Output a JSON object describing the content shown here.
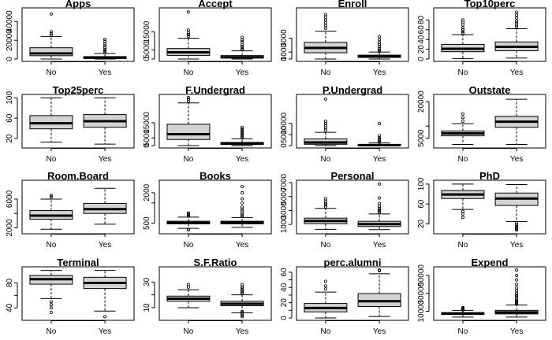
{
  "chart_data": [
    {
      "type": "boxplot",
      "title": "Apps",
      "categories": [
        "No",
        "Yes"
      ],
      "ylim": [
        0,
        52000
      ],
      "yticks": [
        0,
        20000,
        40000
      ],
      "ytick_labels": [
        "0",
        "20000",
        "40000"
      ],
      "boxes": [
        {
          "min": 0,
          "q1": 3500,
          "median": 6000,
          "q3": 12000,
          "max": 24000,
          "outliers": [
            25000,
            27000,
            29000,
            48000
          ]
        },
        {
          "min": 0,
          "q1": 800,
          "median": 1400,
          "q3": 2600,
          "max": 6000,
          "outliers": [
            7000,
            8500,
            10000,
            12000,
            14000,
            16000,
            19000,
            21000
          ]
        }
      ]
    },
    {
      "type": "boxplot",
      "title": "Accept",
      "categories": [
        "No",
        "Yes"
      ],
      "ylim": [
        0,
        27000
      ],
      "yticks": [
        0,
        5000,
        15000
      ],
      "ytick_labels": [
        "0",
        "5000",
        "15000"
      ],
      "boxes": [
        {
          "min": 0,
          "q1": 2000,
          "median": 3700,
          "q3": 5800,
          "max": 11500,
          "outliers": [
            12500,
            13500,
            14500,
            16000,
            26000
          ]
        },
        {
          "min": 0,
          "q1": 550,
          "median": 1000,
          "q3": 1900,
          "max": 4500,
          "outliers": [
            5200,
            6000,
            7000,
            8000,
            9500,
            10500,
            12000
          ]
        }
      ]
    },
    {
      "type": "boxplot",
      "title": "Enroll",
      "categories": [
        "No",
        "Yes"
      ],
      "ylim": [
        0,
        7000
      ],
      "yticks": [
        0,
        1000,
        3000
      ],
      "ytick_labels": [
        "0",
        "1000",
        "3000"
      ],
      "boxes": [
        {
          "min": 0,
          "q1": 900,
          "median": 1600,
          "q3": 2400,
          "max": 4000,
          "outliers": [
            4400,
            4800,
            5200,
            5600,
            6000,
            6400
          ]
        },
        {
          "min": 0,
          "q1": 230,
          "median": 350,
          "q3": 560,
          "max": 1000,
          "outliers": [
            1100,
            1300,
            1500,
            1800,
            2100,
            2400,
            2800,
            3200
          ]
        }
      ]
    },
    {
      "type": "boxplot",
      "title": "Top10perc",
      "categories": [
        "No",
        "Yes"
      ],
      "ylim": [
        0,
        100
      ],
      "yticks": [
        0,
        20,
        40,
        60,
        80
      ],
      "ytick_labels": [
        "0",
        "20",
        "40",
        "60",
        "80"
      ],
      "boxes": [
        {
          "min": 1,
          "q1": 15,
          "median": 21,
          "q3": 30,
          "max": 50,
          "outliers": [
            53,
            56,
            60,
            64,
            70,
            75,
            80
          ]
        },
        {
          "min": 2,
          "q1": 17,
          "median": 25,
          "q3": 35,
          "max": 62,
          "outliers": [
            66,
            70,
            74,
            78,
            84,
            90,
            96
          ]
        }
      ]
    },
    {
      "type": "boxplot",
      "title": "Top25perc",
      "categories": [
        "No",
        "Yes"
      ],
      "ylim": [
        6,
        102
      ],
      "yticks": [
        20,
        60,
        100
      ],
      "ytick_labels": [
        "20",
        "60",
        "100"
      ],
      "boxes": [
        {
          "min": 13,
          "q1": 39,
          "median": 50,
          "q3": 65,
          "max": 100,
          "outliers": []
        },
        {
          "min": 9,
          "q1": 42,
          "median": 54,
          "q3": 67,
          "max": 100,
          "outliers": []
        }
      ]
    },
    {
      "type": "boxplot",
      "title": "F.Undergrad",
      "categories": [
        "No",
        "Yes"
      ],
      "ylim": [
        0,
        32000
      ],
      "yticks": [
        0,
        5000,
        15000
      ],
      "ytick_labels": [
        "0",
        "5000",
        "15000"
      ],
      "boxes": [
        {
          "min": 0,
          "q1": 4000,
          "median": 7500,
          "q3": 14000,
          "max": 28000,
          "outliers": [
            29000,
            30500,
            31500
          ]
        },
        {
          "min": 0,
          "q1": 700,
          "median": 1300,
          "q3": 2100,
          "max": 4500,
          "outliers": [
            5000,
            6000,
            7000,
            8000,
            9000,
            10000,
            11000,
            12000
          ]
        }
      ]
    },
    {
      "type": "boxplot",
      "title": "P.Undergrad",
      "categories": [
        "No",
        "Yes"
      ],
      "ylim": [
        0,
        22000
      ],
      "yticks": [
        0,
        5000,
        10000
      ],
      "ytick_labels": [
        "0",
        "5000",
        "10000"
      ],
      "boxes": [
        {
          "min": 0,
          "q1": 600,
          "median": 1400,
          "q3": 3000,
          "max": 6000,
          "outliers": [
            7000,
            8000,
            9000,
            10000,
            11000,
            21000
          ]
        },
        {
          "min": 0,
          "q1": 50,
          "median": 200,
          "q3": 500,
          "max": 1200,
          "outliers": [
            1500,
            2000,
            2500,
            3000,
            3500,
            4500,
            10000
          ]
        }
      ]
    },
    {
      "type": "boxplot",
      "title": "Outstate",
      "categories": [
        "No",
        "Yes"
      ],
      "ylim": [
        2000,
        22000
      ],
      "yticks": [
        5000,
        10000,
        20000
      ],
      "ytick_labels": [
        "5000",
        "",
        "20000"
      ],
      "boxes": [
        {
          "min": 2500,
          "q1": 6000,
          "median": 7000,
          "q3": 8000,
          "max": 11000,
          "outliers": [
            12000,
            13500,
            15000
          ]
        },
        {
          "min": 2500,
          "q1": 9500,
          "median": 11800,
          "q3": 14000,
          "max": 21000,
          "outliers": []
        }
      ]
    },
    {
      "type": "boxplot",
      "title": "Room.Board",
      "categories": [
        "No",
        "Yes"
      ],
      "ylim": [
        1500,
        8300
      ],
      "yticks": [
        2000,
        4000,
        6000
      ],
      "ytick_labels": [
        "2000",
        "",
        "6000"
      ],
      "boxes": [
        {
          "min": 1800,
          "q1": 3200,
          "median": 3700,
          "q3": 4400,
          "max": 6000,
          "outliers": [
            6300,
            6500
          ]
        },
        {
          "min": 2500,
          "q1": 4000,
          "median": 4600,
          "q3": 5400,
          "max": 7500,
          "outliers": []
        }
      ]
    },
    {
      "type": "boxplot",
      "title": "Books",
      "categories": [
        "No",
        "Yes"
      ],
      "ylim": [
        100,
        2500
      ],
      "yticks": [
        500,
        1500,
        2000
      ],
      "ytick_labels": [
        "500",
        "",
        "2000"
      ],
      "boxes": [
        {
          "min": 250,
          "q1": 470,
          "median": 520,
          "q3": 600,
          "max": 800,
          "outliers": [
            850,
            900,
            950,
            1000,
            200,
            180
          ]
        },
        {
          "min": 300,
          "q1": 470,
          "median": 530,
          "q3": 600,
          "max": 780,
          "outliers": [
            850,
            900,
            1000,
            1100,
            1200,
            1300,
            1500,
            1700,
            2000,
            2300
          ]
        }
      ]
    },
    {
      "type": "boxplot",
      "title": "Personal",
      "categories": [
        "No",
        "Yes"
      ],
      "ylim": [
        0,
        7000
      ],
      "yticks": [
        1000,
        3000,
        5000,
        7000
      ],
      "ytick_labels": [
        "1000",
        "3000",
        "5000",
        "7000"
      ],
      "boxes": [
        {
          "min": 300,
          "q1": 1100,
          "median": 1500,
          "q3": 1900,
          "max": 3300,
          "outliers": [
            3500,
            3800,
            4000,
            4300,
            4700
          ]
        },
        {
          "min": 250,
          "q1": 700,
          "median": 1050,
          "q3": 1450,
          "max": 2500,
          "outliers": [
            2700,
            2900,
            3100,
            3300,
            3600,
            4000,
            4800,
            6800
          ]
        }
      ]
    },
    {
      "type": "boxplot",
      "title": "PhD",
      "categories": [
        "No",
        "Yes"
      ],
      "ylim": [
        5,
        103
      ],
      "yticks": [
        20,
        60,
        100
      ],
      "ytick_labels": [
        "20",
        "60",
        "100"
      ],
      "boxes": [
        {
          "min": 49,
          "q1": 71,
          "median": 79,
          "q3": 87,
          "max": 100,
          "outliers": [
            45,
            40,
            33
          ]
        },
        {
          "min": 25,
          "q1": 57,
          "median": 71,
          "q3": 82,
          "max": 99,
          "outliers": [
            22,
            18,
            15,
            12,
            10,
            8
          ]
        }
      ]
    },
    {
      "type": "boxplot",
      "title": "Terminal",
      "categories": [
        "No",
        "Yes"
      ],
      "ylim": [
        24,
        102
      ],
      "yticks": [
        40,
        60,
        80
      ],
      "ytick_labels": [
        "40",
        "",
        "80"
      ],
      "boxes": [
        {
          "min": 55,
          "q1": 78,
          "median": 86,
          "q3": 92,
          "max": 100,
          "outliers": [
            50,
            45,
            40,
            33
          ]
        },
        {
          "min": 35,
          "q1": 71,
          "median": 80,
          "q3": 89,
          "max": 100,
          "outliers": [
            26
          ]
        }
      ]
    },
    {
      "type": "boxplot",
      "title": "S.F.Ratio",
      "categories": [
        "No",
        "Yes"
      ],
      "ylim": [
        2,
        40
      ],
      "yticks": [
        10,
        20,
        30
      ],
      "ytick_labels": [
        "10",
        "",
        "30"
      ],
      "boxes": [
        {
          "min": 10,
          "q1": 15,
          "median": 17,
          "q3": 19,
          "max": 24,
          "outliers": [
            26,
            28
          ]
        },
        {
          "min": 6,
          "q1": 11.5,
          "median": 13,
          "q3": 15,
          "max": 20,
          "outliers": [
            21,
            22,
            23,
            24,
            25,
            26,
            28,
            7,
            6,
            5,
            4,
            3
          ]
        }
      ]
    },
    {
      "type": "boxplot",
      "title": "perc.alumni",
      "categories": [
        "No",
        "Yes"
      ],
      "ylim": [
        0,
        64
      ],
      "yticks": [
        0,
        10,
        20,
        30,
        40,
        50,
        60
      ],
      "ytick_labels": [
        "0",
        "",
        "20",
        "",
        "40",
        "",
        "60"
      ],
      "boxes": [
        {
          "min": 0,
          "q1": 8,
          "median": 13,
          "q3": 19,
          "max": 34,
          "outliers": [
            38,
            42,
            48
          ]
        },
        {
          "min": 2,
          "q1": 15,
          "median": 22,
          "q3": 32,
          "max": 58,
          "outliers": [
            62,
            63
          ]
        }
      ]
    },
    {
      "type": "boxplot",
      "title": "Expend",
      "categories": [
        "No",
        "Yes"
      ],
      "ylim": [
        2500,
        57000
      ],
      "yticks": [
        10000,
        30000,
        50000
      ],
      "ytick_labels": [
        "10000",
        "30000",
        "50000"
      ],
      "boxes": [
        {
          "min": 3500,
          "q1": 6500,
          "median": 7500,
          "q3": 8500,
          "max": 11000,
          "outliers": [
            11500,
            12000,
            12500,
            13000,
            13500,
            14000
          ]
        },
        {
          "min": 3500,
          "q1": 7000,
          "median": 8800,
          "q3": 11000,
          "max": 17000,
          "outliers": [
            18000,
            19000,
            20000,
            21000,
            22000,
            24000,
            26000,
            28000,
            30000,
            33000,
            36000,
            40000,
            45000,
            50000,
            56000
          ]
        }
      ]
    }
  ]
}
